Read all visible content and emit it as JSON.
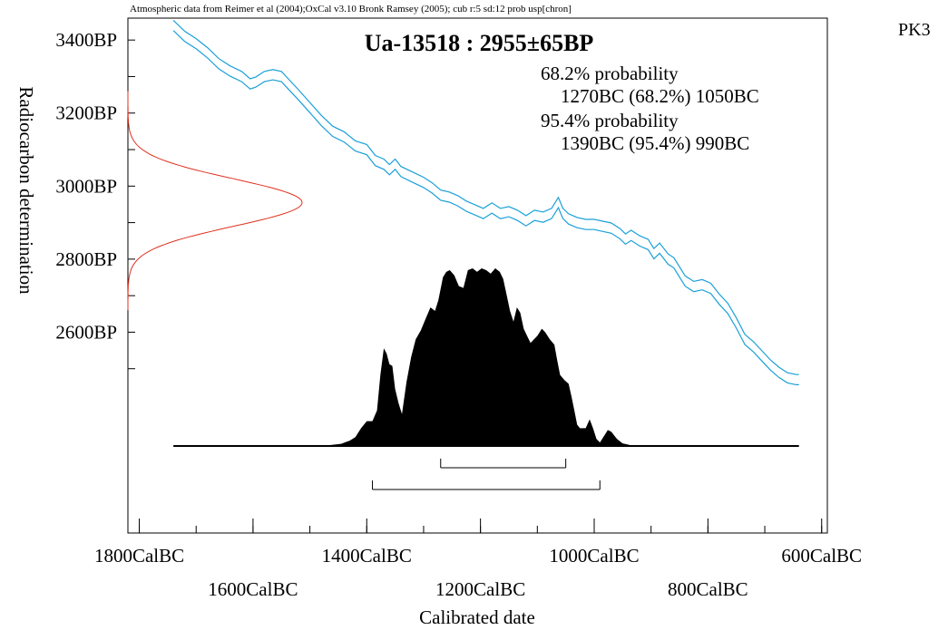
{
  "chart_data": {
    "type": "area",
    "source_note": "Atmospheric data from Reimer et al (2004);OxCal v3.10 Bronk Ramsey (2005); cub r:5 sd:12 prob usp[chron]",
    "title": "Ua-13518 : 2955±65BP",
    "corner_label": "PK3",
    "xlabel": "Calibrated date",
    "ylabel": "Radiocarbon determination",
    "x_unit": "CalBC",
    "y_unit": "BP",
    "xlim": [
      1820,
      590
    ],
    "ylim": [
      2050,
      3460
    ],
    "x_ticks": [
      1800,
      1600,
      1400,
      1200,
      1000,
      800,
      600
    ],
    "x_tick_labels": [
      "1800CalBC",
      "1600CalBC",
      "1400CalBC",
      "1200CalBC",
      "1000CalBC",
      "800CalBC",
      "600CalBC"
    ],
    "y_ticks": [
      3400,
      3200,
      3000,
      2800,
      2600
    ],
    "y_tick_labels": [
      "3400BP",
      "3200BP",
      "3000BP",
      "2800BP",
      "2600BP"
    ],
    "ranges": {
      "p68_heading": "68.2% probability",
      "p68_range": "1270BC (68.2%) 1050BC",
      "p95_heading": "95.4% probability",
      "p95_range": "1390BC (95.4%) 990BC",
      "p68_bar": [
        1270,
        1050
      ],
      "p95_bar": [
        1390,
        990
      ]
    },
    "measurement": {
      "mean_bp": 2955,
      "sd_bp": 65,
      "color": "#e0301e"
    },
    "calibration_curve": {
      "color": "#1aa0d8",
      "half_width_bp": 14,
      "points": [
        [
          1740,
          3440
        ],
        [
          1720,
          3410
        ],
        [
          1700,
          3390
        ],
        [
          1680,
          3365
        ],
        [
          1660,
          3335
        ],
        [
          1640,
          3315
        ],
        [
          1620,
          3300
        ],
        [
          1605,
          3280
        ],
        [
          1595,
          3285
        ],
        [
          1580,
          3300
        ],
        [
          1565,
          3305
        ],
        [
          1550,
          3300
        ],
        [
          1535,
          3275
        ],
        [
          1520,
          3250
        ],
        [
          1500,
          3215
        ],
        [
          1480,
          3180
        ],
        [
          1460,
          3150
        ],
        [
          1440,
          3135
        ],
        [
          1420,
          3110
        ],
        [
          1400,
          3100
        ],
        [
          1385,
          3070
        ],
        [
          1370,
          3060
        ],
        [
          1360,
          3045
        ],
        [
          1350,
          3060
        ],
        [
          1340,
          3040
        ],
        [
          1320,
          3025
        ],
        [
          1300,
          3010
        ],
        [
          1285,
          2995
        ],
        [
          1270,
          2975
        ],
        [
          1255,
          2970
        ],
        [
          1240,
          2960
        ],
        [
          1225,
          2945
        ],
        [
          1210,
          2935
        ],
        [
          1195,
          2925
        ],
        [
          1180,
          2940
        ],
        [
          1165,
          2925
        ],
        [
          1150,
          2930
        ],
        [
          1135,
          2920
        ],
        [
          1120,
          2905
        ],
        [
          1105,
          2920
        ],
        [
          1090,
          2915
        ],
        [
          1075,
          2925
        ],
        [
          1063,
          2955
        ],
        [
          1055,
          2925
        ],
        [
          1045,
          2910
        ],
        [
          1030,
          2900
        ],
        [
          1015,
          2895
        ],
        [
          1000,
          2895
        ],
        [
          985,
          2890
        ],
        [
          970,
          2885
        ],
        [
          955,
          2870
        ],
        [
          945,
          2855
        ],
        [
          935,
          2865
        ],
        [
          920,
          2850
        ],
        [
          905,
          2840
        ],
        [
          895,
          2815
        ],
        [
          885,
          2830
        ],
        [
          870,
          2800
        ],
        [
          860,
          2790
        ],
        [
          850,
          2765
        ],
        [
          840,
          2740
        ],
        [
          825,
          2725
        ],
        [
          810,
          2730
        ],
        [
          795,
          2720
        ],
        [
          780,
          2690
        ],
        [
          765,
          2665
        ],
        [
          750,
          2625
        ],
        [
          735,
          2580
        ],
        [
          720,
          2560
        ],
        [
          705,
          2535
        ],
        [
          690,
          2510
        ],
        [
          675,
          2490
        ],
        [
          660,
          2475
        ],
        [
          645,
          2470
        ],
        [
          640,
          2470
        ]
      ]
    },
    "calibrated_distribution": {
      "color": "#000000",
      "points": [
        [
          1740,
          0.0
        ],
        [
          1500,
          0.0
        ],
        [
          1470,
          0.003
        ],
        [
          1445,
          0.012
        ],
        [
          1430,
          0.03
        ],
        [
          1420,
          0.05
        ],
        [
          1410,
          0.1
        ],
        [
          1400,
          0.14
        ],
        [
          1390,
          0.14
        ],
        [
          1382,
          0.2
        ],
        [
          1376,
          0.4
        ],
        [
          1370,
          0.55
        ],
        [
          1365,
          0.52
        ],
        [
          1360,
          0.46
        ],
        [
          1355,
          0.45
        ],
        [
          1350,
          0.32
        ],
        [
          1344,
          0.24
        ],
        [
          1338,
          0.18
        ],
        [
          1330,
          0.36
        ],
        [
          1322,
          0.5
        ],
        [
          1314,
          0.6
        ],
        [
          1305,
          0.65
        ],
        [
          1296,
          0.72
        ],
        [
          1288,
          0.78
        ],
        [
          1280,
          0.76
        ],
        [
          1274,
          0.82
        ],
        [
          1266,
          0.95
        ],
        [
          1260,
          0.98
        ],
        [
          1254,
          0.99
        ],
        [
          1246,
          0.96
        ],
        [
          1238,
          0.9
        ],
        [
          1230,
          0.89
        ],
        [
          1222,
          0.99
        ],
        [
          1214,
          1.0
        ],
        [
          1206,
          0.98
        ],
        [
          1198,
          1.0
        ],
        [
          1190,
          0.99
        ],
        [
          1182,
          0.97
        ],
        [
          1174,
          1.0
        ],
        [
          1166,
          0.98
        ],
        [
          1160,
          0.94
        ],
        [
          1154,
          0.85
        ],
        [
          1148,
          0.76
        ],
        [
          1142,
          0.7
        ],
        [
          1136,
          0.78
        ],
        [
          1130,
          0.75
        ],
        [
          1124,
          0.66
        ],
        [
          1118,
          0.62
        ],
        [
          1112,
          0.58
        ],
        [
          1106,
          0.6
        ],
        [
          1100,
          0.62
        ],
        [
          1092,
          0.66
        ],
        [
          1086,
          0.64
        ],
        [
          1078,
          0.6
        ],
        [
          1070,
          0.57
        ],
        [
          1065,
          0.48
        ],
        [
          1060,
          0.4
        ],
        [
          1052,
          0.37
        ],
        [
          1045,
          0.35
        ],
        [
          1040,
          0.28
        ],
        [
          1035,
          0.2
        ],
        [
          1030,
          0.12
        ],
        [
          1025,
          0.1
        ],
        [
          1015,
          0.1
        ],
        [
          1008,
          0.15
        ],
        [
          1002,
          0.1
        ],
        [
          996,
          0.04
        ],
        [
          990,
          0.02
        ],
        [
          982,
          0.06
        ],
        [
          976,
          0.09
        ],
        [
          970,
          0.08
        ],
        [
          960,
          0.04
        ],
        [
          950,
          0.015
        ],
        [
          935,
          0.004
        ],
        [
          900,
          0.0
        ],
        [
          640,
          0.0
        ]
      ]
    }
  }
}
